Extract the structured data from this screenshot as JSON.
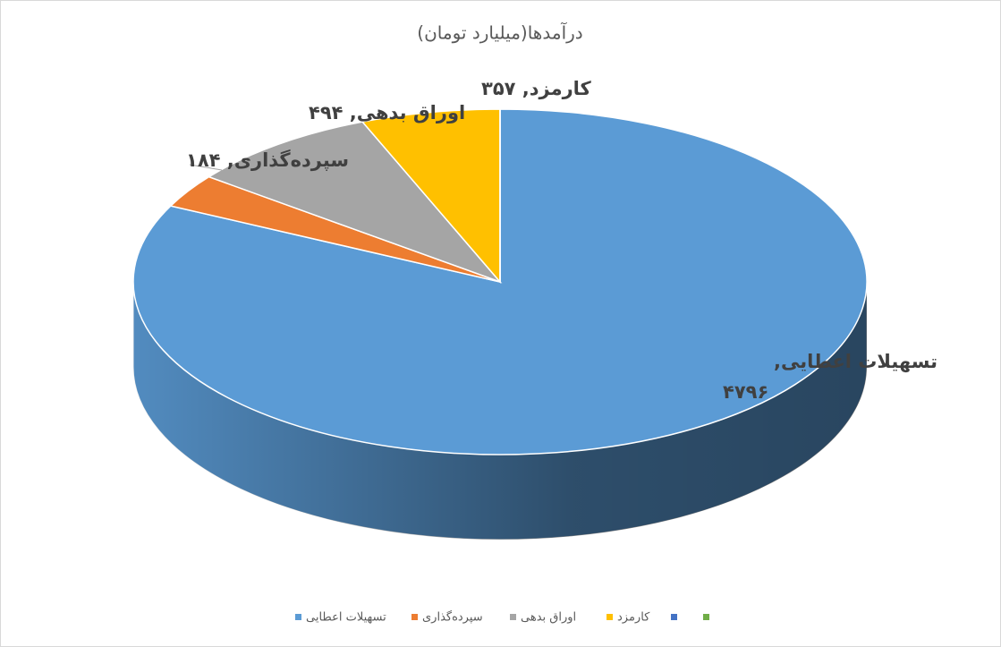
{
  "chart_data": {
    "type": "pie3d",
    "title": "درآمدها(میلیارد تومان)",
    "categories": [
      "تسهیلات اعطایی",
      "سپرده‌گذاری",
      "اوراق بدهی",
      "کارمزد",
      null,
      null
    ],
    "values": [
      4796,
      184,
      494,
      357,
      0,
      0
    ],
    "value_labels": [
      "تسهیلات اعطایی, ۴۷۹۶",
      "سپرده‌گذاری, ۱۸۴",
      "اوراق بدهی, ۴۹۴",
      "کارمزد, ۳۵۷",
      null,
      null
    ],
    "colors": [
      "#5b9bd5",
      "#ed7d31",
      "#a5a5a5",
      "#ffc000",
      "#4472c4",
      "#70ad47"
    ],
    "legend": "bottom"
  }
}
